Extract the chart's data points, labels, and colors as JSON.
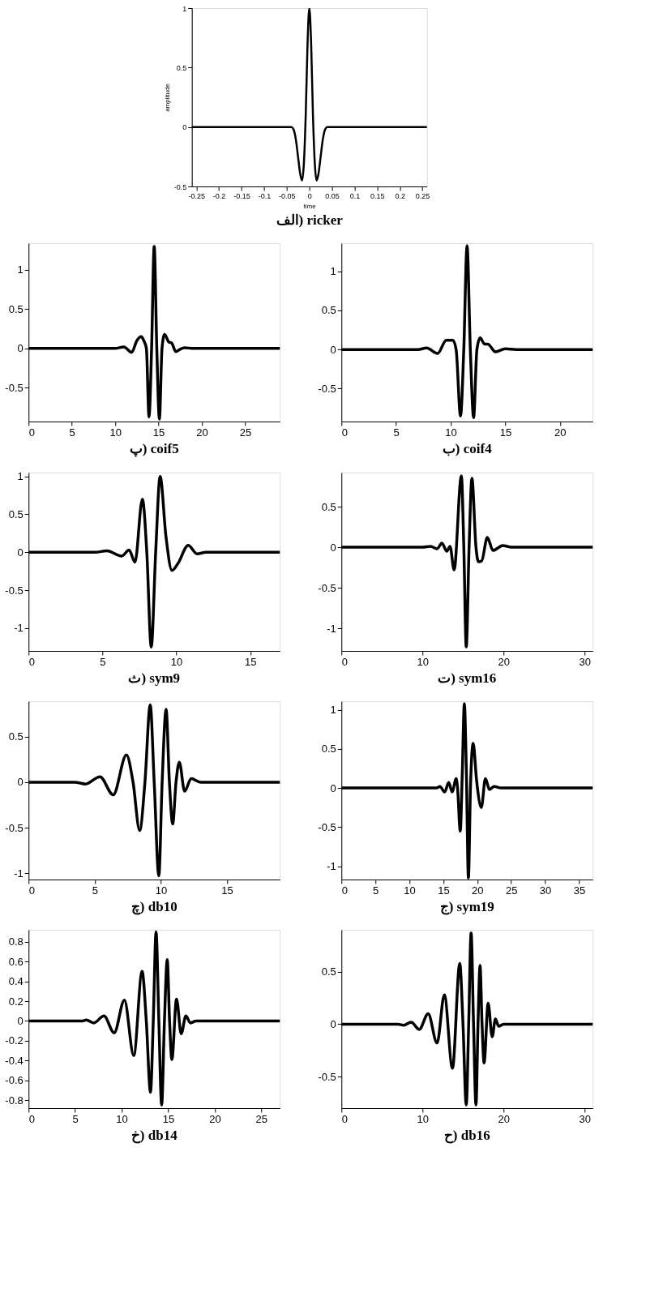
{
  "chart_data": [
    {
      "type": "line",
      "title": "الف) ricker",
      "xlabel": "time",
      "ylabel": "amplitude",
      "xlim": [
        -0.26,
        0.26
      ],
      "xticks": [
        -0.25,
        -0.2,
        -0.15,
        -0.1,
        -0.05,
        0,
        0.05,
        0.1,
        0.15,
        0.2,
        0.25
      ],
      "ylim": [
        -0.5,
        1
      ],
      "yticks": [
        -0.5,
        0,
        0.5,
        1
      ],
      "grid": false,
      "x": [
        -0.26,
        -0.04,
        -0.035,
        -0.03,
        -0.025,
        -0.02,
        -0.016,
        -0.012,
        -0.008,
        -0.004,
        0,
        0.004,
        0.008,
        0.012,
        0.016,
        0.02,
        0.025,
        0.03,
        0.035,
        0.04,
        0.26
      ],
      "series": [
        {
          "color": "#000000",
          "values": [
            0,
            0,
            -0.02,
            -0.1,
            -0.25,
            -0.4,
            -0.45,
            -0.3,
            0.1,
            0.7,
            1,
            0.7,
            0.1,
            -0.3,
            -0.45,
            -0.4,
            -0.25,
            -0.1,
            -0.02,
            0,
            0
          ]
        }
      ]
    },
    {
      "type": "line",
      "title": "پ) coif5",
      "xlim": [
        0,
        29
      ],
      "xticks": [
        0,
        5,
        10,
        15,
        20,
        25
      ],
      "ylim": [
        -0.93,
        1.34
      ],
      "yticks": [
        -0.5,
        0,
        0.5,
        1
      ],
      "grid": false,
      "x": [
        0,
        9,
        10,
        11,
        11.9,
        12.5,
        13,
        13.3,
        13.6,
        13.9,
        14.2,
        14.5,
        14.8,
        15.1,
        15.4,
        15.7,
        16.2,
        16.5,
        17,
        17.5,
        18,
        19,
        29
      ],
      "series": [
        {
          "color": "#000000",
          "values": [
            0,
            0,
            0,
            0.02,
            -0.05,
            0.1,
            0.15,
            0.1,
            0,
            -0.87,
            0,
            1.3,
            0,
            -0.9,
            0,
            0.18,
            0.08,
            0.07,
            -0.04,
            -0.01,
            0.01,
            0,
            0
          ]
        }
      ]
    },
    {
      "type": "line",
      "title": "ب) coif4",
      "xlim": [
        0,
        23
      ],
      "xticks": [
        0,
        5,
        10,
        15,
        20
      ],
      "ylim": [
        -0.92,
        1.36
      ],
      "yticks": [
        -0.5,
        0,
        0.5,
        1
      ],
      "grid": false,
      "x": [
        0,
        7,
        7.8,
        8.8,
        9.6,
        10.2,
        10.5,
        10.9,
        11.2,
        11.5,
        11.8,
        12.1,
        12.4,
        12.7,
        13.1,
        13.4,
        14.1,
        15,
        16,
        23
      ],
      "series": [
        {
          "color": "#000000",
          "values": [
            0,
            0,
            0.02,
            -0.05,
            0.12,
            0.12,
            0,
            -0.85,
            0,
            1.33,
            0,
            -0.87,
            0,
            0.15,
            0.07,
            0.07,
            -0.03,
            0.01,
            0,
            0
          ]
        }
      ]
    },
    {
      "type": "line",
      "title": "ث) sym9",
      "xlim": [
        0,
        17
      ],
      "xticks": [
        0,
        5,
        10,
        15
      ],
      "ylim": [
        -1.3,
        1.05
      ],
      "yticks": [
        -1,
        -0.5,
        0,
        0.5,
        1
      ],
      "grid": false,
      "x": [
        0,
        4.5,
        5.3,
        6.3,
        6.8,
        7.2,
        7.7,
        8.0,
        8.3,
        8.6,
        8.9,
        9.3,
        9.7,
        10.1,
        10.8,
        11.4,
        12,
        17
      ],
      "series": [
        {
          "color": "#000000",
          "values": [
            0,
            0,
            0.02,
            -0.05,
            0.03,
            -0.13,
            0.7,
            0,
            -1.25,
            0,
            1.0,
            0.2,
            -0.24,
            -0.15,
            0.09,
            -0.02,
            0,
            0
          ]
        }
      ]
    },
    {
      "type": "line",
      "title": "ت) sym16",
      "xlim": [
        0,
        31
      ],
      "xticks": [
        0,
        10,
        20,
        30
      ],
      "ylim": [
        -1.28,
        0.92
      ],
      "yticks": [
        -1,
        -0.5,
        0,
        0.5
      ],
      "grid": false,
      "x": [
        0,
        10,
        11,
        11.8,
        12.4,
        13,
        13.4,
        13.9,
        14.8,
        15.1,
        15.4,
        15.75,
        16.1,
        16.6,
        16.9,
        17.3,
        18,
        18.7,
        19.9,
        21,
        31
      ],
      "series": [
        {
          "color": "#000000",
          "values": [
            0,
            0,
            0.01,
            -0.02,
            0.05,
            -0.05,
            0.01,
            -0.28,
            0.88,
            0,
            -1.23,
            0,
            0.85,
            0,
            -0.18,
            -0.17,
            0.12,
            -0.04,
            0.02,
            0,
            0
          ]
        }
      ]
    },
    {
      "type": "line",
      "title": "چ) db10",
      "xlim": [
        0,
        19
      ],
      "xticks": [
        0,
        5,
        10,
        15
      ],
      "ylim": [
        -1.07,
        0.89
      ],
      "yticks": [
        -1,
        -0.5,
        0,
        0.5
      ],
      "grid": false,
      "x": [
        0,
        3.5,
        4.3,
        5.4,
        6.4,
        7.4,
        7.9,
        8.4,
        8.8,
        9.2,
        9.5,
        9.85,
        10.1,
        10.4,
        10.65,
        10.9,
        11.15,
        11.4,
        11.8,
        12.3,
        13,
        19
      ],
      "series": [
        {
          "color": "#000000",
          "values": [
            0,
            0,
            -0.02,
            0.06,
            -0.14,
            0.3,
            0,
            -0.53,
            0,
            0.85,
            0,
            -1.03,
            0,
            0.8,
            0,
            -0.46,
            0,
            0.22,
            -0.1,
            0.04,
            0,
            0
          ]
        }
      ]
    },
    {
      "type": "line",
      "title": "ج) sym19",
      "xlim": [
        0,
        37
      ],
      "xticks": [
        0,
        5,
        10,
        15,
        20,
        25,
        30,
        35
      ],
      "ylim": [
        -1.17,
        1.11
      ],
      "yticks": [
        -1,
        -0.5,
        0,
        0.5,
        1
      ],
      "grid": false,
      "x": [
        0,
        14,
        14.5,
        15.2,
        15.8,
        16.3,
        16.9,
        17.1,
        17.5,
        17.8,
        18.1,
        18.4,
        18.7,
        19.0,
        19.4,
        19.9,
        20.6,
        21.2,
        21.8,
        22.5,
        23.5,
        37
      ],
      "series": [
        {
          "color": "#000000",
          "values": [
            0,
            0,
            0.02,
            -0.05,
            0.07,
            -0.05,
            0.12,
            0,
            -0.55,
            0.2,
            1.08,
            0.2,
            -1.15,
            0,
            0.57,
            0.1,
            -0.25,
            0.12,
            -0.02,
            0.02,
            0,
            0
          ]
        }
      ]
    },
    {
      "type": "line",
      "title": "خ) db14",
      "xlim": [
        0,
        27
      ],
      "xticks": [
        0,
        5,
        10,
        15,
        20,
        25
      ],
      "ylim": [
        -0.88,
        0.92
      ],
      "yticks": [
        -0.8,
        -0.6,
        -0.4,
        -0.2,
        0,
        0.2,
        0.4,
        0.6,
        0.8
      ],
      "grid": false,
      "x": [
        0,
        5.8,
        6.2,
        7,
        8.1,
        9.2,
        10.3,
        11.3,
        12.2,
        12.65,
        13.1,
        13.4,
        13.7,
        14.0,
        14.3,
        14.6,
        14.9,
        15.15,
        15.4,
        15.9,
        16.4,
        16.9,
        17.4,
        18,
        27
      ],
      "series": [
        {
          "color": "#000000",
          "values": [
            0,
            0,
            0.01,
            -0.02,
            0.05,
            -0.12,
            0.21,
            -0.35,
            0.5,
            0,
            -0.72,
            0,
            0.9,
            0,
            -0.85,
            0,
            0.62,
            0,
            -0.39,
            0.22,
            -0.13,
            0.05,
            -0.02,
            0,
            0
          ]
        }
      ]
    },
    {
      "type": "line",
      "title": "ح) db16",
      "xlim": [
        0,
        31
      ],
      "xticks": [
        0,
        10,
        20,
        30
      ],
      "ylim": [
        -0.8,
        0.9
      ],
      "yticks": [
        -0.5,
        0,
        0.5
      ],
      "grid": false,
      "x": [
        0,
        7,
        7.7,
        8.6,
        9.6,
        10.7,
        11.8,
        12.7,
        13.7,
        14.6,
        15.0,
        15.4,
        15.7,
        16.0,
        16.3,
        16.6,
        16.85,
        17.1,
        17.35,
        17.6,
        18.1,
        18.6,
        19.0,
        19.4,
        20,
        31
      ],
      "series": [
        {
          "color": "#000000",
          "values": [
            0,
            0,
            -0.01,
            0.02,
            -0.05,
            0.1,
            -0.18,
            0.28,
            -0.42,
            0.58,
            0,
            -0.77,
            0,
            0.87,
            0,
            -0.77,
            0,
            0.56,
            0,
            -0.37,
            0.2,
            -0.12,
            0.05,
            -0.02,
            0,
            0
          ]
        }
      ]
    }
  ]
}
